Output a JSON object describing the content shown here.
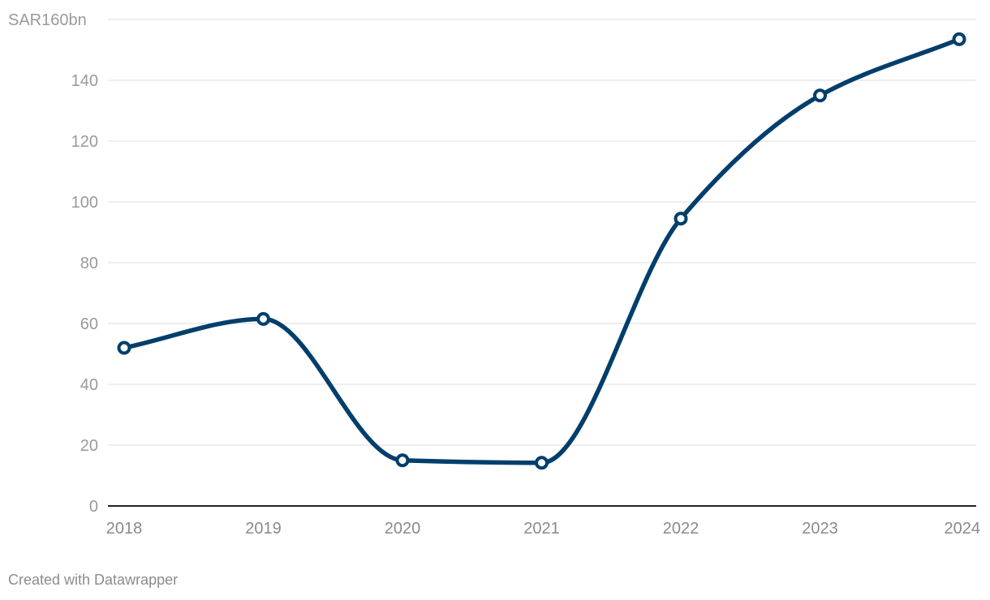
{
  "footer": {
    "credit": "Created with Datawrapper"
  },
  "chart_data": {
    "type": "line",
    "title": "",
    "xlabel": "",
    "ylabel": "",
    "categories": [
      "2018",
      "2019",
      "2020",
      "2021",
      "2022",
      "2023",
      "2024"
    ],
    "series": [
      {
        "values": [
          52,
          61.5,
          15,
          14.2,
          94.5,
          135,
          153.5
        ]
      }
    ],
    "ylim": [
      0,
      160
    ],
    "y_ticks": [
      0,
      20,
      40,
      60,
      80,
      100,
      120,
      140,
      160
    ],
    "y_tick_labels": [
      "0",
      "20",
      "40",
      "60",
      "80",
      "100",
      "120",
      "140",
      "SAR160bn"
    ],
    "grid": true,
    "line_color": "#003e6b",
    "grid_color": "#e3e3e3",
    "axis_color": "#222222"
  }
}
